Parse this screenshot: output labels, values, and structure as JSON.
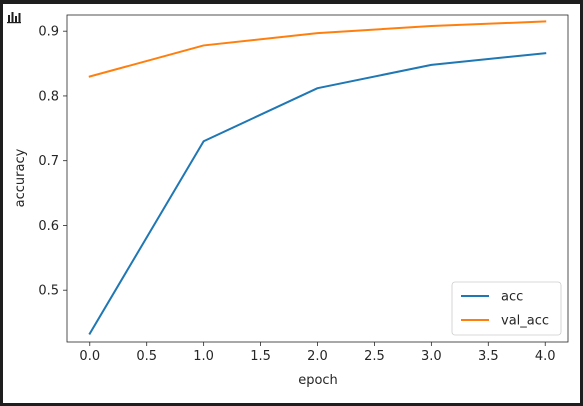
{
  "toolbar": {
    "icon": "bar-chart-icon"
  },
  "colors": {
    "acc": "#1f77b4",
    "val_acc": "#ff7f0e",
    "frame": "#1e1e1e"
  },
  "chart_data": {
    "type": "line",
    "title": "",
    "xlabel": "epoch",
    "ylabel": "accuracy",
    "xlim": [
      -0.2,
      4.2
    ],
    "ylim": [
      0.42,
      0.925
    ],
    "xticks": [
      "0.0",
      "0.5",
      "1.0",
      "1.5",
      "2.0",
      "2.5",
      "3.0",
      "3.5",
      "4.0"
    ],
    "xtick_values": [
      0,
      0.5,
      1,
      1.5,
      2,
      2.5,
      3,
      3.5,
      4
    ],
    "yticks": [
      "0.5",
      "0.6",
      "0.7",
      "0.8",
      "0.9"
    ],
    "ytick_values": [
      0.5,
      0.6,
      0.7,
      0.8,
      0.9
    ],
    "x": [
      0,
      1,
      2,
      3,
      4
    ],
    "series": [
      {
        "name": "acc",
        "color": "#1f77b4",
        "values": [
          0.433,
          0.73,
          0.812,
          0.848,
          0.866
        ]
      },
      {
        "name": "val_acc",
        "color": "#ff7f0e",
        "values": [
          0.83,
          0.878,
          0.897,
          0.908,
          0.915
        ]
      }
    ],
    "grid": false,
    "legend_position": "lower-right"
  }
}
